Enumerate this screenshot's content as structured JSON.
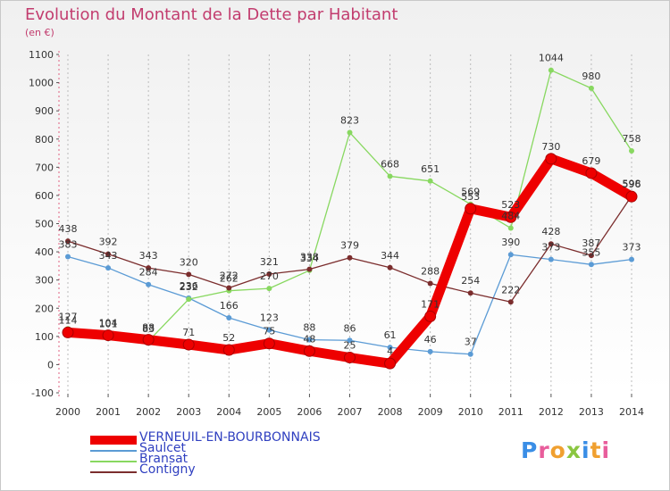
{
  "header": {
    "title": "Evolution du Montant de la Dette par Habitant",
    "subtitle": "(en €)"
  },
  "chart_data": {
    "type": "line",
    "title": "Evolution du Montant de la Dette par Habitant",
    "ylabel": "(en €)",
    "xlabel": "",
    "x": [
      "2000",
      "2001",
      "2002",
      "2003",
      "2004",
      "2005",
      "2006",
      "2007",
      "2008",
      "2009",
      "2010",
      "2011",
      "2012",
      "2013",
      "2014"
    ],
    "ylim": [
      -100,
      1100
    ],
    "yticks": [
      -100,
      0,
      100,
      200,
      300,
      400,
      500,
      600,
      700,
      800,
      900,
      1000,
      1100
    ],
    "grid": "vertical-dashed",
    "legend_position": "bottom-left",
    "series": [
      {
        "name": "VERNEUIL-EN-BOURBONNAIS",
        "color": "#ee0000",
        "values": [
          114,
          104,
          88,
          71,
          52,
          75,
          48,
          25,
          4,
          171,
          553,
          523,
          730,
          679,
          596
        ],
        "data_labels": [
          "114",
          "104",
          "88",
          "71",
          "52",
          "75",
          "48",
          "25",
          "4",
          "171",
          "553",
          "523",
          "730",
          "679",
          "596"
        ]
      },
      {
        "name": "Saulcet",
        "color": "#5b9bd5",
        "values": [
          383,
          343,
          284,
          236,
          166,
          123,
          88,
          86,
          61,
          46,
          37,
          390,
          373,
          355,
          373
        ],
        "data_labels": [
          "383",
          "343",
          "284",
          "236",
          "166",
          "123",
          "88",
          "86",
          "61",
          "46",
          "37",
          "390",
          "373",
          "355",
          "373"
        ]
      },
      {
        "name": "Bransat",
        "color": "#88d860",
        "values": [
          127,
          101,
          83,
          232,
          262,
          270,
          334,
          823,
          668,
          651,
          569,
          484,
          1044,
          980,
          758
        ],
        "data_labels": [
          "127",
          "101",
          "83",
          "232",
          "262",
          "270",
          "334",
          "823",
          "668",
          "651",
          "569",
          "484",
          "1044",
          "980",
          "758"
        ]
      },
      {
        "name": "Contigny",
        "color": "#7b2d2d",
        "values": [
          438,
          392,
          343,
          320,
          272,
          321,
          338,
          379,
          344,
          288,
          254,
          222,
          428,
          387,
          598
        ],
        "data_labels": [
          "438",
          "392",
          "343",
          "320",
          "272",
          "321",
          "338",
          "379",
          "344",
          "288",
          "254",
          "222",
          "428",
          "387",
          "598"
        ]
      }
    ]
  },
  "legend": {
    "items": [
      {
        "name": "VERNEUIL-EN-BOURBONNAIS",
        "color": "#ee0000"
      },
      {
        "name": "Saulcet",
        "color": "#5b9bd5"
      },
      {
        "name": "Bransat",
        "color": "#88d860"
      },
      {
        "name": "Contigny",
        "color": "#7b2d2d"
      }
    ]
  },
  "logo": {
    "text": "Proxiti",
    "colors": [
      "#3a8ee6",
      "#e85d9b",
      "#f0a030",
      "#8ac640",
      "#3a8ee6",
      "#f0a030",
      "#e85d9b"
    ]
  }
}
